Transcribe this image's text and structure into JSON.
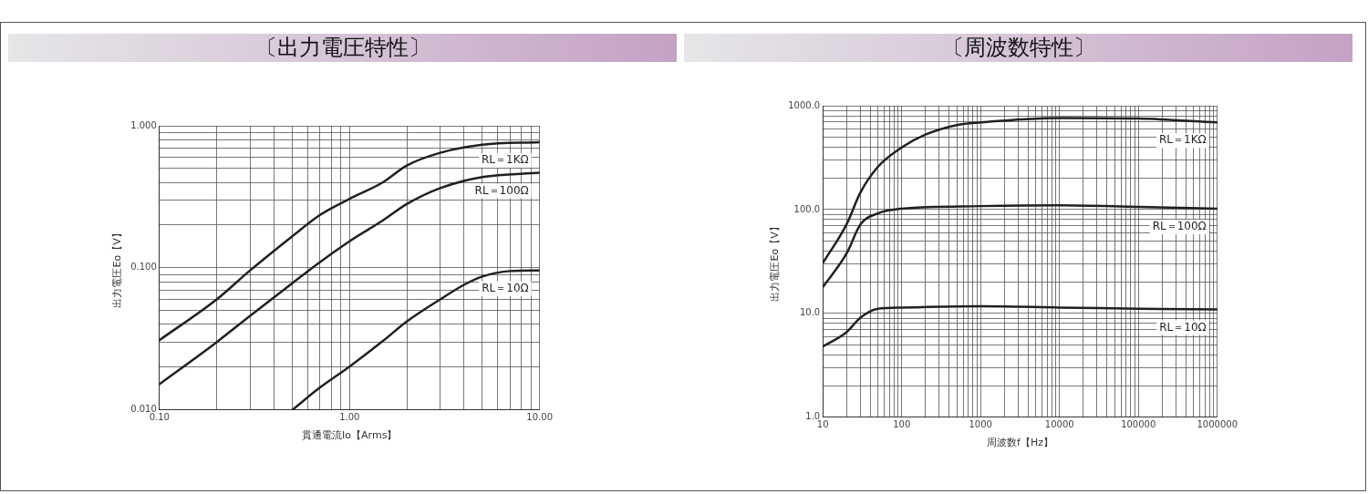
{
  "chart_data": [
    {
      "type": "line",
      "title": "〔出力電圧特性〕",
      "xlabel": "貫通電流Io【Arms】",
      "ylabel": "出力電圧Eo【V】",
      "log": "xy",
      "grid": true,
      "legend": false,
      "marker": "none",
      "line_style": "solid",
      "xlim": [
        0.1,
        10
      ],
      "ylim": [
        0.01,
        1
      ],
      "xticks": [
        {
          "value": 0.1,
          "label": "0.10"
        },
        {
          "value": 0.2,
          "label": null
        },
        {
          "value": 0.3,
          "label": null
        },
        {
          "value": 0.4,
          "label": null
        },
        {
          "value": 0.5,
          "label": null
        },
        {
          "value": 0.6,
          "label": null
        },
        {
          "value": 0.7,
          "label": null
        },
        {
          "value": 0.8,
          "label": null
        },
        {
          "value": 0.9,
          "label": null
        },
        {
          "value": 1,
          "label": "1.00"
        },
        {
          "value": 2,
          "label": null
        },
        {
          "value": 3,
          "label": null
        },
        {
          "value": 4,
          "label": null
        },
        {
          "value": 5,
          "label": null
        },
        {
          "value": 6,
          "label": null
        },
        {
          "value": 7,
          "label": null
        },
        {
          "value": 8,
          "label": null
        },
        {
          "value": 9,
          "label": null
        },
        {
          "value": 10,
          "label": "10.00"
        }
      ],
      "yticks": [
        {
          "value": 0.01,
          "label": "0.010"
        },
        {
          "value": 0.02,
          "label": null
        },
        {
          "value": 0.03,
          "label": null
        },
        {
          "value": 0.04,
          "label": null
        },
        {
          "value": 0.05,
          "label": null
        },
        {
          "value": 0.06,
          "label": null
        },
        {
          "value": 0.07,
          "label": null
        },
        {
          "value": 0.08,
          "label": null
        },
        {
          "value": 0.09,
          "label": null
        },
        {
          "value": 0.1,
          "label": "0.100"
        },
        {
          "value": 0.2,
          "label": null
        },
        {
          "value": 0.3,
          "label": null
        },
        {
          "value": 0.4,
          "label": null
        },
        {
          "value": 0.5,
          "label": null
        },
        {
          "value": 0.6,
          "label": null
        },
        {
          "value": 0.7,
          "label": null
        },
        {
          "value": 0.8,
          "label": null
        },
        {
          "value": 0.9,
          "label": null
        },
        {
          "value": 1,
          "label": "1.000"
        }
      ],
      "series": [
        {
          "name": "RL＝1KΩ",
          "color": "#231f20",
          "x": [
            0.1,
            0.2,
            0.3,
            0.5,
            0.7,
            1,
            1.5,
            2,
            3,
            5,
            10
          ],
          "values": [
            0.031,
            0.06,
            0.096,
            0.167,
            0.236,
            0.306,
            0.4,
            0.525,
            0.646,
            0.736,
            0.767
          ]
        },
        {
          "name": "RL＝100Ω",
          "color": "#231f20",
          "x": [
            0.1,
            0.2,
            0.3,
            0.5,
            0.7,
            1,
            1.5,
            2,
            3,
            5,
            10
          ],
          "values": [
            0.0152,
            0.03,
            0.046,
            0.078,
            0.11,
            0.154,
            0.216,
            0.281,
            0.364,
            0.436,
            0.467
          ]
        },
        {
          "name": "RL＝10Ω",
          "color": "#231f20",
          "x": [
            0.5,
            0.7,
            1,
            1.5,
            2,
            3,
            4,
            5,
            7,
            10
          ],
          "values": [
            0.01,
            0.0144,
            0.0202,
            0.0306,
            0.0419,
            0.06,
            0.076,
            0.087,
            0.095,
            0.096
          ]
        }
      ]
    },
    {
      "type": "line",
      "title": "〔周波数特性〕",
      "xlabel": "周波数f【Hz】",
      "ylabel": "出力電圧Eo【V】",
      "log": "xy",
      "grid": true,
      "legend": false,
      "marker": "none",
      "line_style": "solid",
      "xlim": [
        10,
        1000000
      ],
      "ylim": [
        1,
        1000
      ],
      "xticks": [
        10,
        {
          "value": 20,
          "label": null
        },
        {
          "value": 30,
          "label": null
        },
        {
          "value": 40,
          "label": null
        },
        {
          "value": 50,
          "label": null
        },
        {
          "value": 60,
          "label": null
        },
        {
          "value": 70,
          "label": null
        },
        {
          "value": 80,
          "label": null
        },
        {
          "value": 90,
          "label": null
        },
        100,
        {
          "value": 200,
          "label": null
        },
        {
          "value": 300,
          "label": null
        },
        {
          "value": 400,
          "label": null
        },
        {
          "value": 500,
          "label": null
        },
        {
          "value": 600,
          "label": null
        },
        {
          "value": 700,
          "label": null
        },
        {
          "value": 800,
          "label": null
        },
        {
          "value": 900,
          "label": null
        },
        1000,
        {
          "value": 2000,
          "label": null
        },
        {
          "value": 3000,
          "label": null
        },
        {
          "value": 4000,
          "label": null
        },
        {
          "value": 5000,
          "label": null
        },
        {
          "value": 6000,
          "label": null
        },
        {
          "value": 7000,
          "label": null
        },
        {
          "value": 8000,
          "label": null
        },
        {
          "value": 9000,
          "label": null
        },
        10000,
        {
          "value": 20000,
          "label": null
        },
        {
          "value": 30000,
          "label": null
        },
        {
          "value": 40000,
          "label": null
        },
        {
          "value": 50000,
          "label": null
        },
        {
          "value": 60000,
          "label": null
        },
        {
          "value": 70000,
          "label": null
        },
        {
          "value": 80000,
          "label": null
        },
        {
          "value": 90000,
          "label": null
        },
        100000,
        {
          "value": 200000,
          "label": null
        },
        {
          "value": 300000,
          "label": null
        },
        {
          "value": 400000,
          "label": null
        },
        {
          "value": 500000,
          "label": null
        },
        {
          "value": 600000,
          "label": null
        },
        {
          "value": 700000,
          "label": null
        },
        {
          "value": 800000,
          "label": null
        },
        {
          "value": 900000,
          "label": null
        },
        1000000
      ],
      "yticks": [
        {
          "value": 1,
          "label": "1.0"
        },
        {
          "value": 2,
          "label": null
        },
        {
          "value": 3,
          "label": null
        },
        {
          "value": 4,
          "label": null
        },
        {
          "value": 5,
          "label": null
        },
        {
          "value": 6,
          "label": null
        },
        {
          "value": 7,
          "label": null
        },
        {
          "value": 8,
          "label": null
        },
        {
          "value": 9,
          "label": null
        },
        {
          "value": 10,
          "label": "10.0"
        },
        {
          "value": 20,
          "label": null
        },
        {
          "value": 30,
          "label": null
        },
        {
          "value": 40,
          "label": null
        },
        {
          "value": 50,
          "label": null
        },
        {
          "value": 60,
          "label": null
        },
        {
          "value": 70,
          "label": null
        },
        {
          "value": 80,
          "label": null
        },
        {
          "value": 90,
          "label": null
        },
        {
          "value": 100,
          "label": "100.0"
        },
        {
          "value": 200,
          "label": null
        },
        {
          "value": 300,
          "label": null
        },
        {
          "value": 400,
          "label": null
        },
        {
          "value": 500,
          "label": null
        },
        {
          "value": 600,
          "label": null
        },
        {
          "value": 700,
          "label": null
        },
        {
          "value": 800,
          "label": null
        },
        {
          "value": 900,
          "label": null
        },
        {
          "value": 1000,
          "label": "1000.0"
        }
      ],
      "series": [
        {
          "name": "RL＝1KΩ",
          "color": "#231f20",
          "x": [
            10,
            20,
            30,
            50,
            100,
            200,
            500,
            1000,
            10000,
            100000,
            1000000
          ],
          "values": [
            30.5,
            72,
            146,
            258,
            396,
            527,
            652,
            691,
            762,
            752,
            691
          ]
        },
        {
          "name": "RL＝100Ω",
          "color": "#231f20",
          "x": [
            10,
            20,
            30,
            50,
            100,
            1000,
            10000,
            100000,
            1000000
          ],
          "values": [
            17.9,
            37.7,
            72,
            92,
            102,
            108,
            110,
            106,
            102
          ]
        },
        {
          "name": "RL＝10Ω",
          "color": "#231f20",
          "x": [
            10,
            20,
            30,
            50,
            100,
            1000,
            10000,
            100000,
            1000000
          ],
          "values": [
            4.8,
            6.6,
            9.1,
            11.1,
            11.4,
            11.7,
            11.4,
            11.1,
            10.9
          ]
        }
      ]
    }
  ]
}
